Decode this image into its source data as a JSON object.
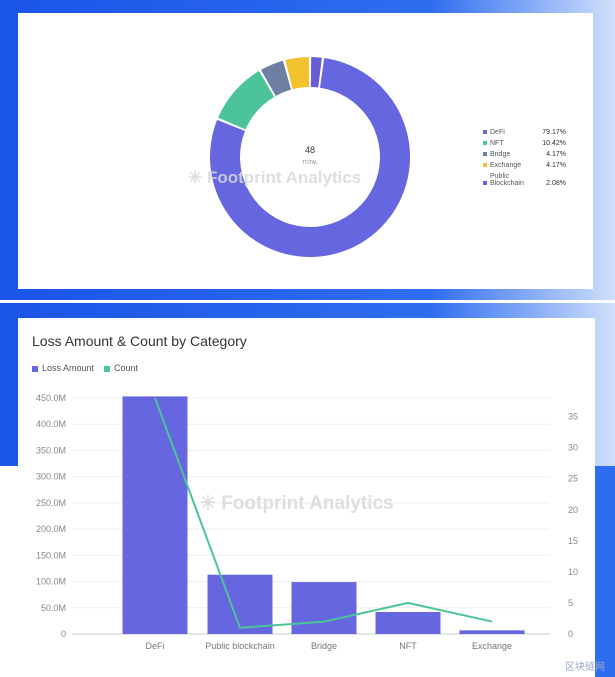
{
  "watermark_text": "Footprint Analytics",
  "site_mark": "区块链网",
  "colors": {
    "frame": "#1a55e8",
    "defi": "#6666e0",
    "nft": "#4cc49a",
    "bridge": "#6d7fa3",
    "exchange": "#f2c12e",
    "public_blockchain": "#6a5bd6"
  },
  "donut": {
    "center_value": "48",
    "center_label": "TOTAL",
    "legend": [
      {
        "label": "DeFi",
        "pct": "79.17%",
        "color": "#6666e0"
      },
      {
        "label": "NFT",
        "pct": "10.42%",
        "color": "#4cc49a"
      },
      {
        "label": "Bridge",
        "pct": "4.17%",
        "color": "#6d7fa3"
      },
      {
        "label": "Exchange",
        "pct": "4.17%",
        "color": "#f2c12e"
      },
      {
        "label": "Public Blockchain",
        "pct": "2.08%",
        "color": "#6a5bd6"
      }
    ]
  },
  "chart_data": [
    {
      "type": "pie",
      "categories": [
        "DeFi",
        "NFT",
        "Bridge",
        "Exchange",
        "Public Blockchain"
      ],
      "values": [
        79.17,
        10.42,
        4.17,
        4.17,
        2.08
      ],
      "total": 48,
      "legend_position": "right"
    },
    {
      "type": "bar",
      "title": "Loss Amount & Count by Category",
      "categories": [
        "DeFi",
        "Public blockchain",
        "Bridge",
        "NFT",
        "Exchange"
      ],
      "series": [
        {
          "name": "Loss Amount",
          "type": "bar",
          "axis": "left",
          "values": [
            453,
            113,
            99,
            42,
            7
          ],
          "unit": "M",
          "color": "#6666e0"
        },
        {
          "name": "Count",
          "type": "line",
          "axis": "right",
          "values": [
            38,
            1,
            2,
            5,
            2
          ],
          "color": "#4cc49a"
        }
      ],
      "y_left": {
        "ylim": [
          0,
          450
        ],
        "ticks": [
          "0",
          "50.0M",
          "100.0M",
          "150.0M",
          "200.0M",
          "250.0M",
          "300.0M",
          "350.0M",
          "400.0M",
          "450.0M"
        ]
      },
      "y_right": {
        "ylim": [
          0,
          38
        ],
        "ticks": [
          "0",
          "5",
          "10",
          "15",
          "20",
          "25",
          "30",
          "35"
        ]
      },
      "grid": true,
      "legend_position": "top-left"
    }
  ]
}
